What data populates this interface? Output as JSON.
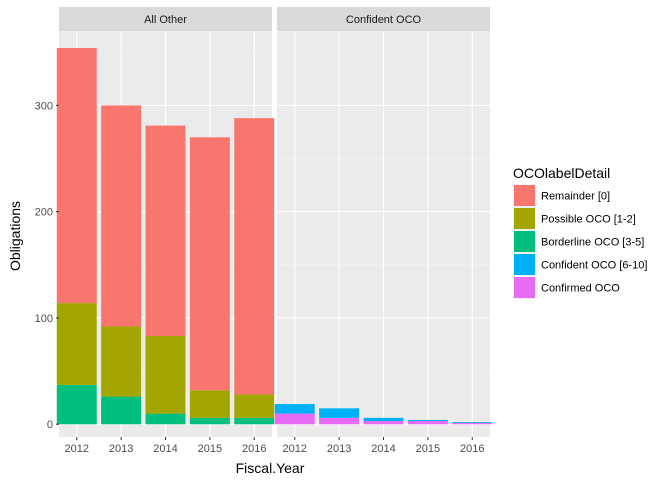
{
  "chart_data": {
    "type": "bar",
    "stacked": true,
    "facets": [
      "All Other",
      "Confident OCO"
    ],
    "categories": [
      "2012",
      "2013",
      "2014",
      "2015",
      "2016"
    ],
    "xlabel": "Fiscal.Year",
    "ylabel": "Obligations",
    "ylim": [
      -12,
      370
    ],
    "yticks": [
      0,
      100,
      200,
      300
    ],
    "legend_title": "OCOlabelDetail",
    "legend_position": "right",
    "grid": true,
    "series": [
      {
        "name": "Remainder [0]",
        "color": "#F8766D",
        "values": {
          "All Other": [
            240,
            208,
            198,
            238,
            260
          ],
          "Confident OCO": [
            0,
            0,
            0,
            0,
            0
          ]
        }
      },
      {
        "name": "Possible OCO [1-2]",
        "color": "#A3A500",
        "values": {
          "All Other": [
            77,
            66,
            73,
            26,
            22
          ],
          "Confident OCO": [
            0,
            0,
            0,
            0,
            0
          ]
        }
      },
      {
        "name": "Borderline OCO [3-5]",
        "color": "#00BF7D",
        "values": {
          "All Other": [
            37,
            26,
            10,
            6,
            6
          ],
          "Confident OCO": [
            0,
            0,
            0,
            0,
            0
          ]
        }
      },
      {
        "name": "Confident OCO [6-10]",
        "color": "#00B0F6",
        "values": {
          "All Other": [
            0,
            0,
            0,
            0,
            0
          ],
          "Confident OCO": [
            9,
            9,
            3,
            1,
            0.5
          ]
        }
      },
      {
        "name": "Confirmed OCO",
        "color": "#E76BF3",
        "values": {
          "All Other": [
            0,
            0,
            0,
            0,
            0
          ],
          "Confident OCO": [
            10,
            6,
            3,
            3,
            1.5
          ]
        }
      }
    ]
  }
}
